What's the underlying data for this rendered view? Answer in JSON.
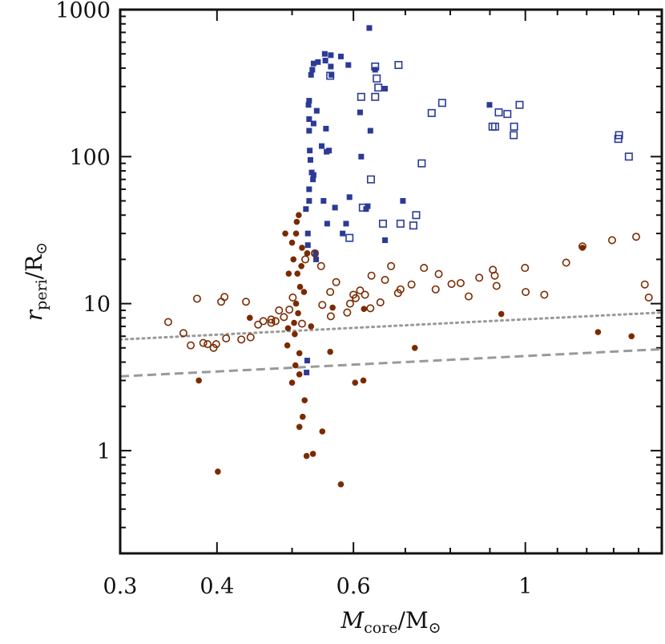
{
  "chart_data": {
    "type": "scatter",
    "xlabel": {
      "var": "M",
      "sub": "core",
      "slash": "/M",
      "sym": "⊙"
    },
    "ylabel": {
      "var": "r",
      "sub": "peri",
      "slash": "/R",
      "sym": "⊙"
    },
    "x_scale": "log",
    "y_scale": "log",
    "xlim": [
      0.3,
      1.5
    ],
    "ylim": [
      0.2,
      1000
    ],
    "x_ticks": [
      {
        "value": 0.3,
        "label": "0.3"
      },
      {
        "value": 0.4,
        "label": "0.4"
      },
      {
        "value": 0.6,
        "label": "0.6"
      },
      {
        "value": 1.0,
        "label": "1"
      }
    ],
    "y_ticks": [
      {
        "value": 1,
        "label": "1"
      },
      {
        "value": 10,
        "label": "10"
      },
      {
        "value": 100,
        "label": "100"
      },
      {
        "value": 1000,
        "label": "1000"
      }
    ],
    "colors": {
      "blue": "#2b3a96",
      "brown": "#7a2a00",
      "line": "#999999"
    },
    "series": [
      {
        "marker": "square-filled",
        "color": "#2b3a96",
        "points": [
          [
            0.629,
            750
          ],
          [
            0.551,
            500
          ],
          [
            0.561,
            490
          ],
          [
            0.578,
            480
          ],
          [
            0.591,
            420
          ],
          [
            0.552,
            450
          ],
          [
            0.54,
            440
          ],
          [
            0.533,
            430
          ],
          [
            0.561,
            410
          ],
          [
            0.531,
            390
          ],
          [
            0.529,
            360
          ],
          [
            0.562,
            360
          ],
          [
            0.64,
            390
          ],
          [
            0.659,
            290
          ],
          [
            0.526,
            240
          ],
          [
            0.525,
            225
          ],
          [
            0.538,
            205
          ],
          [
            0.533,
            168
          ],
          [
            0.526,
            180
          ],
          [
            0.526,
            150
          ],
          [
            0.553,
            155
          ],
          [
            0.612,
            200
          ],
          [
            0.631,
            150
          ],
          [
            0.546,
            118
          ],
          [
            0.554,
            108
          ],
          [
            0.558,
            110
          ],
          [
            0.527,
            110
          ],
          [
            0.528,
            95
          ],
          [
            0.53,
            78
          ],
          [
            0.533,
            75
          ],
          [
            0.532,
            70
          ],
          [
            0.614,
            100
          ],
          [
            0.526,
            60
          ],
          [
            0.526,
            50
          ],
          [
            0.521,
            44
          ],
          [
            0.549,
            50
          ],
          [
            0.568,
            45
          ],
          [
            0.593,
            53
          ],
          [
            0.623,
            44
          ],
          [
            0.626,
            46
          ],
          [
            0.695,
            50
          ],
          [
            0.555,
            35
          ],
          [
            0.587,
            35
          ],
          [
            0.581,
            30
          ],
          [
            0.524,
            30
          ],
          [
            0.524,
            25
          ],
          [
            0.659,
            27
          ],
          [
            0.523,
            4.1
          ],
          [
            0.522,
            3.4
          ],
          [
            0.536,
            22
          ],
          [
            0.537,
            20
          ],
          [
            0.899,
            225
          ]
        ]
      },
      {
        "marker": "square-open",
        "color": "#2b3a96",
        "points": [
          [
            0.56,
            355
          ],
          [
            0.64,
            410
          ],
          [
            0.686,
            420
          ],
          [
            0.643,
            340
          ],
          [
            0.646,
            295
          ],
          [
            0.614,
            255
          ],
          [
            0.64,
            255
          ],
          [
            0.781,
            232
          ],
          [
            0.757,
            198
          ],
          [
            0.983,
            225
          ],
          [
            0.924,
            200
          ],
          [
            0.948,
            195
          ],
          [
            0.907,
            160
          ],
          [
            0.914,
            160
          ],
          [
            0.967,
            160
          ],
          [
            0.966,
            140
          ],
          [
            1.321,
            140
          ],
          [
            1.318,
            132
          ],
          [
            1.36,
            100
          ],
          [
            0.735,
            90
          ],
          [
            0.632,
            70
          ],
          [
            0.617,
            45
          ],
          [
            0.69,
            35
          ],
          [
            0.717,
            34
          ],
          [
            0.723,
            40
          ],
          [
            0.655,
            35
          ],
          [
            0.593,
            28
          ]
        ]
      },
      {
        "marker": "circle-filled",
        "color": "#7a2a00",
        "points": [
          [
            0.51,
            40
          ],
          [
            0.506,
            30
          ],
          [
            0.5,
            26
          ],
          [
            0.515,
            24
          ],
          [
            0.502,
            20
          ],
          [
            0.508,
            16
          ],
          [
            0.512,
            13
          ],
          [
            0.506,
            10
          ],
          [
            0.509,
            8.6
          ],
          [
            0.503,
            7.4
          ],
          [
            0.494,
            6.8
          ],
          [
            0.504,
            6.2
          ],
          [
            0.493,
            5.2
          ],
          [
            0.511,
            4.6
          ],
          [
            0.505,
            3.8
          ],
          [
            0.511,
            3.3
          ],
          [
            0.5,
            2.9
          ],
          [
            0.519,
            2.2
          ],
          [
            0.516,
            1.7
          ],
          [
            0.511,
            1.45
          ],
          [
            0.547,
            1.35
          ],
          [
            0.522,
            0.92
          ],
          [
            0.532,
            0.95
          ],
          [
            0.401,
            0.72
          ],
          [
            0.578,
            0.59
          ],
          [
            0.56,
            4.7
          ],
          [
            0.603,
            2.9
          ],
          [
            0.618,
            3.0
          ],
          [
            0.72,
            5.0
          ],
          [
            0.379,
            3.0
          ],
          [
            0.441,
            8.0
          ],
          [
            0.529,
            7.0
          ],
          [
            0.564,
            9.4
          ],
          [
            0.619,
            9.2
          ],
          [
            0.931,
            8.5
          ],
          [
            1.185,
            24.0
          ],
          [
            1.241,
            6.4
          ],
          [
            1.371,
            6.0
          ],
          [
            0.49,
            30
          ],
          [
            0.518,
            12
          ],
          [
            0.495,
            16
          ],
          [
            0.523,
            22
          ],
          [
            0.507,
            36
          ],
          [
            0.514,
            18
          ]
        ]
      },
      {
        "marker": "circle-open",
        "color": "#7a2a00",
        "points": [
          [
            0.346,
            7.5
          ],
          [
            0.362,
            6.3
          ],
          [
            0.377,
            10.8
          ],
          [
            0.389,
            5.3
          ],
          [
            0.37,
            5.2
          ],
          [
            0.384,
            5.4
          ],
          [
            0.396,
            5.0
          ],
          [
            0.399,
            5.3
          ],
          [
            0.411,
            5.8
          ],
          [
            0.405,
            10.3
          ],
          [
            0.409,
            11.1
          ],
          [
            0.43,
            5.7
          ],
          [
            0.442,
            5.9
          ],
          [
            0.436,
            10.3
          ],
          [
            0.459,
            7.6
          ],
          [
            0.47,
            7.4
          ],
          [
            0.476,
            7.6
          ],
          [
            0.481,
            9.0
          ],
          [
            0.488,
            8.1
          ],
          [
            0.52,
            20.0
          ],
          [
            0.535,
            22.0
          ],
          [
            0.545,
            18.0
          ],
          [
            0.56,
            12.0
          ],
          [
            0.57,
            14.0
          ],
          [
            0.594,
            10.0
          ],
          [
            0.6,
            11.5
          ],
          [
            0.612,
            12.3
          ],
          [
            0.631,
            9.3
          ],
          [
            0.65,
            10.2
          ],
          [
            0.671,
            18.0
          ],
          [
            0.659,
            14.5
          ],
          [
            0.685,
            11.8
          ],
          [
            0.713,
            13.5
          ],
          [
            0.74,
            17.5
          ],
          [
            0.766,
            12.5
          ],
          [
            0.803,
            13.6
          ],
          [
            0.845,
            11.2
          ],
          [
            0.872,
            15.0
          ],
          [
            0.908,
            17.0
          ],
          [
            0.913,
            15.5
          ],
          [
            0.918,
            13.2
          ],
          [
            0.999,
            17.5
          ],
          [
            1.001,
            12.0
          ],
          [
            1.058,
            11.5
          ],
          [
            1.129,
            19.0
          ],
          [
            1.185,
            24.5
          ],
          [
            1.294,
            27.0
          ],
          [
            1.39,
            28.5
          ],
          [
            1.426,
            13.5
          ],
          [
            1.443,
            11.0
          ],
          [
            0.589,
            8.7
          ],
          [
            0.561,
            8.2
          ],
          [
            0.547,
            9.8
          ],
          [
            0.501,
            11.0
          ],
          [
            0.496,
            9.1
          ],
          [
            0.515,
            7.3
          ],
          [
            0.604,
            10.9
          ],
          [
            0.621,
            11.5
          ],
          [
            0.633,
            15.5
          ],
          [
            0.69,
            12.5
          ],
          [
            0.773,
            15.9
          ],
          [
            0.825,
            13.8
          ],
          [
            0.47,
            7.8
          ],
          [
            0.452,
            7.2
          ]
        ]
      }
    ],
    "lines": [
      {
        "style": "dotted",
        "color": "#999999",
        "x": [
          0.3,
          1.5
        ],
        "y": [
          5.7,
          8.7
        ]
      },
      {
        "style": "dashed",
        "color": "#999999",
        "x": [
          0.3,
          1.5
        ],
        "y": [
          3.2,
          4.9
        ]
      }
    ]
  }
}
